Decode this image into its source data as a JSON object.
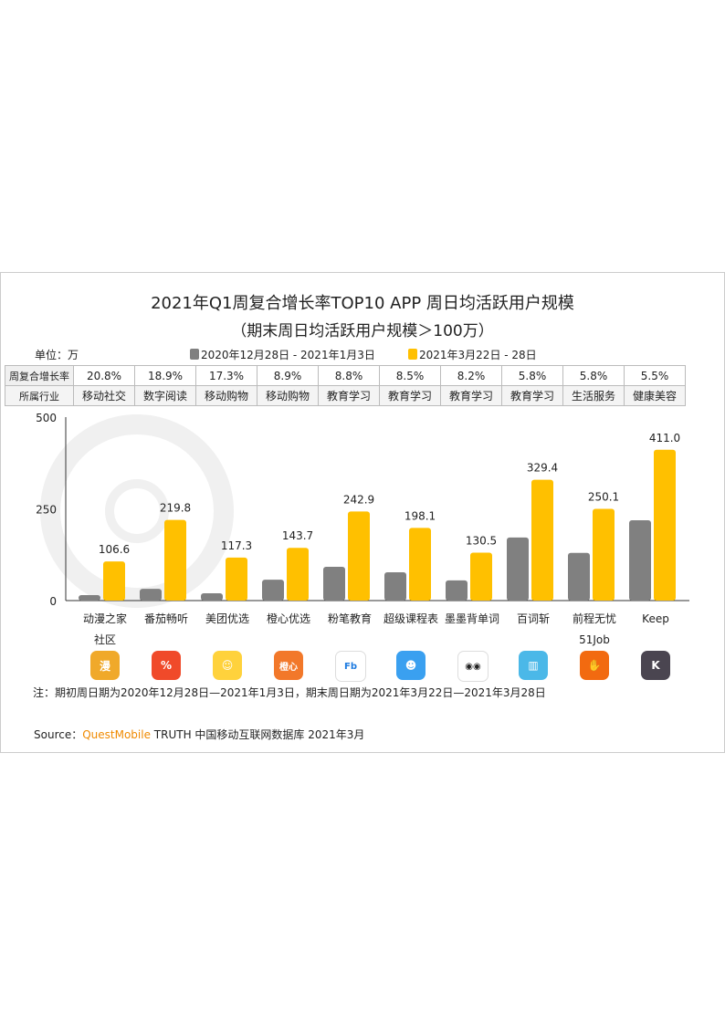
{
  "chart_data": {
    "type": "bar",
    "title": "2021年Q1周复合增长率TOP10 APP 周日均活跃用户规模",
    "subtitle": "（期末周日均活跃用户规模＞100万）",
    "unit_label": "单位：万",
    "ylim": [
      0,
      500
    ],
    "yticks": [
      "0",
      "250",
      "500"
    ],
    "categories": [
      "动漫之家社区",
      "番茄畅听",
      "美团优选",
      "橙心优选",
      "粉笔教育",
      "超级课程表",
      "墨墨背单词",
      "百词斩",
      "前程无忧51Job",
      "Keep"
    ],
    "series": [
      {
        "name": "2020年12月28日 - 2021年1月3日",
        "color": "#808080",
        "values": [
          15,
          32,
          20,
          57,
          92,
          77,
          55,
          172,
          130,
          219
        ]
      },
      {
        "name": "2021年3月22日 - 28日",
        "color": "#FFC000",
        "values": [
          106.6,
          219.8,
          117.3,
          143.7,
          242.9,
          198.1,
          130.5,
          329.4,
          250.1,
          411.0
        ]
      }
    ],
    "value_labels": [
      "106.6",
      "219.8",
      "117.3",
      "143.7",
      "242.9",
      "198.1",
      "130.5",
      "329.4",
      "250.1",
      "411.0"
    ],
    "legend": "top"
  },
  "table": {
    "row1_header": "周复合增长率",
    "growth": [
      "20.8%",
      "18.9%",
      "17.3%",
      "8.9%",
      "8.8%",
      "8.5%",
      "8.2%",
      "5.8%",
      "5.8%",
      "5.5%"
    ],
    "row2_header": "所属行业",
    "industry": [
      "移动社交",
      "数字阅读",
      "移动购物",
      "移动购物",
      "教育学习",
      "教育学习",
      "教育学习",
      "教育学习",
      "生活服务",
      "健康美容"
    ]
  },
  "icons": [
    {
      "name": "dongman-icon",
      "color": "#F0A92A",
      "glyph": "漫"
    },
    {
      "name": "fanqie-icon",
      "color": "#F04A2A",
      "glyph": "%"
    },
    {
      "name": "meituan-icon",
      "color": "#FFD23C",
      "glyph": "☺"
    },
    {
      "name": "chengxin-icon",
      "color": "#F2782A",
      "glyph": "橙心"
    },
    {
      "name": "fenbi-icon",
      "color": "#ffffff",
      "glyph": "Fb"
    },
    {
      "name": "chaoji-icon",
      "color": "#3AA0F0",
      "glyph": "☻"
    },
    {
      "name": "momo-icon",
      "color": "#ffffff",
      "glyph": "◉◉"
    },
    {
      "name": "baici-icon",
      "color": "#4BB8E8",
      "glyph": "▥"
    },
    {
      "name": "qiancheng-icon",
      "color": "#F26A10",
      "glyph": "✋"
    },
    {
      "name": "keep-icon",
      "color": "#4A4550",
      "glyph": "K"
    }
  ],
  "footnote": "注：期初周日期为2020年12月28日—2021年1月3日，期末周日期为2021年3月22日—2021年3月28日",
  "source": {
    "prefix": "Source：",
    "brand": "QuestMobile",
    "rest": " TRUTH 中国移动互联网数据库 2021年3月"
  },
  "watermark": "QUESTMOBILE"
}
